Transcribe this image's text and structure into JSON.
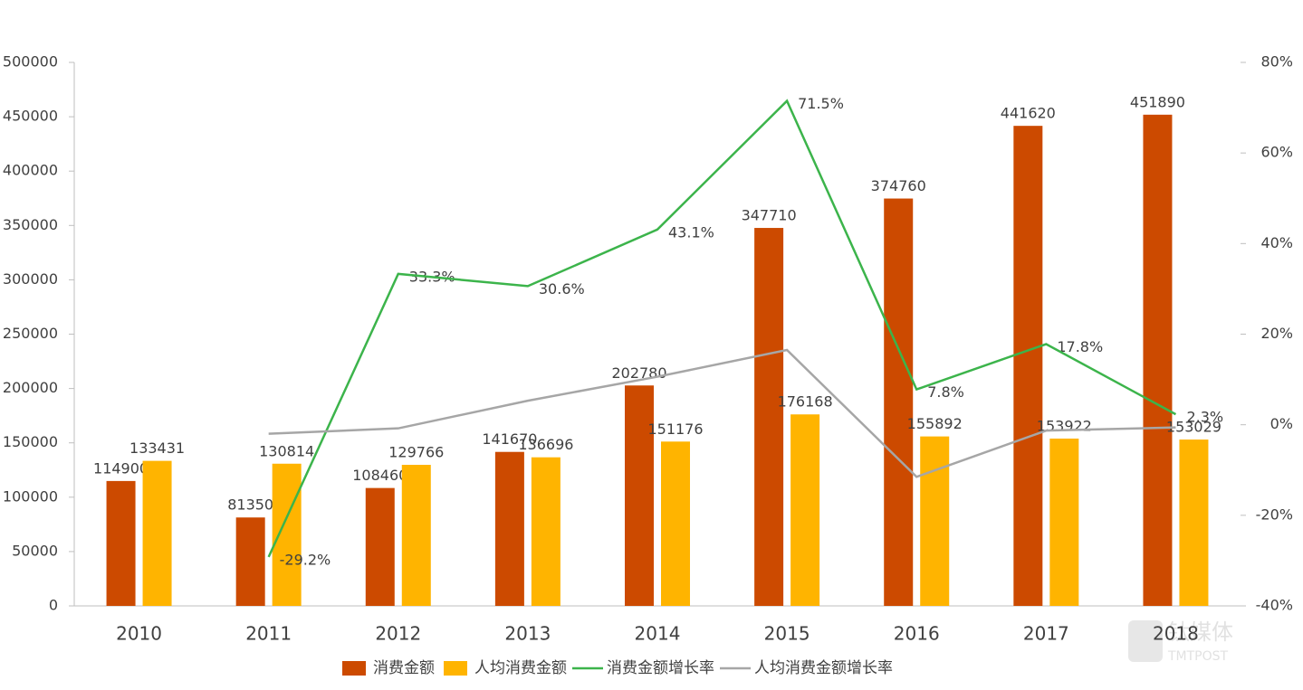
{
  "chart_data": {
    "type": "bar",
    "categories": [
      "2010",
      "2011",
      "2012",
      "2013",
      "2014",
      "2015",
      "2016",
      "2017",
      "2018"
    ],
    "series": [
      {
        "name": "消费金额",
        "type": "bar",
        "color": "#cc4a00",
        "values": [
          114900,
          81350,
          108460,
          141670,
          202780,
          347710,
          374760,
          441620,
          451890
        ]
      },
      {
        "name": "人均消费金额",
        "type": "bar",
        "color": "#ffb400",
        "values": [
          133431,
          130814,
          129766,
          136696,
          151176,
          176168,
          155892,
          153922,
          153029
        ]
      },
      {
        "name": "消费金额增长率",
        "type": "line",
        "axis": "y2",
        "color": "#3cb44b",
        "values": [
          null,
          -29.2,
          33.3,
          30.6,
          43.1,
          71.5,
          7.8,
          17.8,
          2.3
        ],
        "value_labels": [
          null,
          "-29.2%",
          "33.3%",
          "30.6%",
          "43.1%",
          "71.5%",
          "7.8%",
          "17.8%",
          "2.3%"
        ]
      },
      {
        "name": "人均消费金额增长率",
        "type": "line",
        "axis": "y2",
        "color": "#a6a6a6",
        "values": [
          null,
          -2.0,
          -0.8,
          5.3,
          10.6,
          16.5,
          -11.5,
          -1.3,
          -0.6
        ]
      }
    ],
    "ylim": [
      0,
      500000
    ],
    "yticks": [
      0,
      50000,
      100000,
      150000,
      200000,
      250000,
      300000,
      350000,
      400000,
      450000,
      500000
    ],
    "y2lim": [
      -40,
      80
    ],
    "y2ticks": [
      {
        "value": -40,
        "label": "-40%"
      },
      {
        "value": -20,
        "label": "-20%"
      },
      {
        "value": 0,
        "label": "0%"
      },
      {
        "value": 20,
        "label": "20%"
      },
      {
        "value": 40,
        "label": "40%"
      },
      {
        "value": 60,
        "label": "60%"
      },
      {
        "value": 80,
        "label": "80%"
      }
    ],
    "grid": false,
    "legend": "bottom"
  },
  "watermark": {
    "text": "钛媒体",
    "subtext": "TMTPOST"
  }
}
